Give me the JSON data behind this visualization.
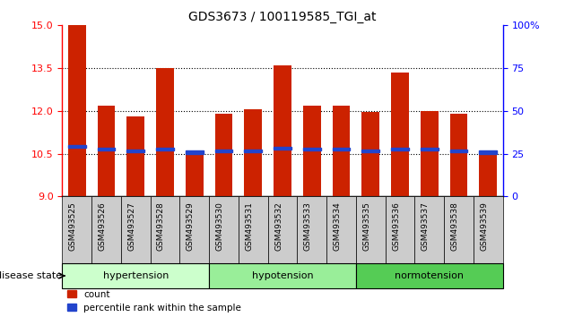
{
  "title": "GDS3673 / 100119585_TGI_at",
  "samples": [
    "GSM493525",
    "GSM493526",
    "GSM493527",
    "GSM493528",
    "GSM493529",
    "GSM493530",
    "GSM493531",
    "GSM493532",
    "GSM493533",
    "GSM493534",
    "GSM493535",
    "GSM493536",
    "GSM493537",
    "GSM493538",
    "GSM493539"
  ],
  "bar_heights": [
    15.0,
    12.2,
    11.8,
    13.5,
    10.55,
    11.9,
    12.05,
    13.6,
    12.2,
    12.2,
    11.95,
    13.35,
    12.0,
    11.9,
    10.45
  ],
  "blue_marker_y": [
    10.75,
    10.65,
    10.6,
    10.65,
    10.55,
    10.6,
    10.6,
    10.7,
    10.65,
    10.65,
    10.6,
    10.65,
    10.65,
    10.6,
    10.55
  ],
  "ymin": 9,
  "ymax": 15,
  "yticks_left": [
    9,
    10.5,
    12,
    13.5,
    15
  ],
  "yticks_right": [
    0,
    25,
    50,
    75,
    100
  ],
  "groups": [
    {
      "label": "hypertension",
      "start": 0,
      "end": 5,
      "color": "#ccffcc"
    },
    {
      "label": "hypotension",
      "start": 5,
      "end": 10,
      "color": "#99ee99"
    },
    {
      "label": "normotension",
      "start": 10,
      "end": 15,
      "color": "#55cc55"
    }
  ],
  "bar_color": "#cc2200",
  "blue_color": "#2244cc",
  "bar_width": 0.6,
  "tick_cell_color": "#cccccc"
}
